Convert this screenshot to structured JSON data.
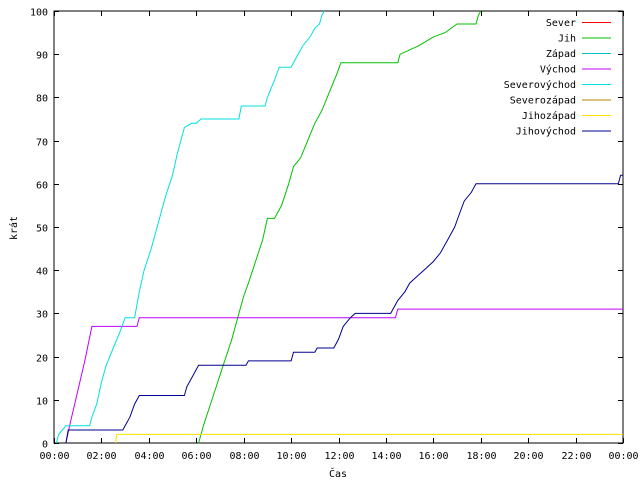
{
  "chart_data": {
    "type": "line",
    "xlabel": "Čas",
    "ylabel": "krát",
    "xlim": [
      0,
      24
    ],
    "ylim": [
      0,
      100
    ],
    "x_ticks": [
      {
        "value": 0,
        "label": "00:00"
      },
      {
        "value": 2,
        "label": "02:00"
      },
      {
        "value": 4,
        "label": "04:00"
      },
      {
        "value": 6,
        "label": "06:00"
      },
      {
        "value": 8,
        "label": "08:00"
      },
      {
        "value": 10,
        "label": "10:00"
      },
      {
        "value": 12,
        "label": "12:00"
      },
      {
        "value": 14,
        "label": "14:00"
      },
      {
        "value": 16,
        "label": "16:00"
      },
      {
        "value": 18,
        "label": "18:00"
      },
      {
        "value": 20,
        "label": "20:00"
      },
      {
        "value": 22,
        "label": "22:00"
      },
      {
        "value": 24,
        "label": "00:00"
      }
    ],
    "y_ticks": [
      0,
      10,
      20,
      30,
      40,
      50,
      60,
      70,
      80,
      90,
      100
    ],
    "grid": false,
    "legend_position": "top-right",
    "series": [
      {
        "name": "Sever",
        "color": "#ff0000",
        "points": []
      },
      {
        "name": "Jih",
        "color": "#00c000",
        "points": [
          [
            6.1,
            0
          ],
          [
            6.3,
            4
          ],
          [
            6.6,
            9
          ],
          [
            6.9,
            14
          ],
          [
            7.2,
            19
          ],
          [
            7.5,
            24
          ],
          [
            7.8,
            30
          ],
          [
            8.0,
            34
          ],
          [
            8.2,
            37
          ],
          [
            8.5,
            42
          ],
          [
            8.8,
            47
          ],
          [
            9.0,
            52
          ],
          [
            9.3,
            52
          ],
          [
            9.6,
            55
          ],
          [
            9.9,
            60
          ],
          [
            10.1,
            64
          ],
          [
            10.4,
            66
          ],
          [
            10.7,
            70
          ],
          [
            11.0,
            74
          ],
          [
            11.3,
            77
          ],
          [
            11.6,
            81
          ],
          [
            11.9,
            85
          ],
          [
            12.1,
            88
          ],
          [
            14.5,
            88
          ],
          [
            14.6,
            90
          ],
          [
            15.0,
            91
          ],
          [
            15.4,
            92
          ],
          [
            16.0,
            94
          ],
          [
            16.5,
            95
          ],
          [
            17.0,
            97
          ],
          [
            17.8,
            97
          ],
          [
            17.9,
            99
          ],
          [
            18.0,
            100
          ]
        ]
      },
      {
        "name": "Západ",
        "color": "#00c0c0",
        "points": []
      },
      {
        "name": "Východ",
        "color": "#c000ff",
        "points": [
          [
            0.5,
            0
          ],
          [
            0.7,
            5
          ],
          [
            1.0,
            12
          ],
          [
            1.3,
            19
          ],
          [
            1.6,
            27
          ],
          [
            3.5,
            27
          ],
          [
            3.6,
            29
          ],
          [
            14.4,
            29
          ],
          [
            14.5,
            31
          ],
          [
            24,
            31
          ]
        ]
      },
      {
        "name": "Severovýchod",
        "color": "#00e0e0",
        "points": [
          [
            0.1,
            0
          ],
          [
            0.2,
            2
          ],
          [
            0.35,
            3
          ],
          [
            0.5,
            4
          ],
          [
            1.5,
            4
          ],
          [
            1.6,
            6
          ],
          [
            1.8,
            9
          ],
          [
            2.0,
            14
          ],
          [
            2.2,
            18
          ],
          [
            2.5,
            22
          ],
          [
            2.8,
            26
          ],
          [
            3.0,
            29
          ],
          [
            3.4,
            29
          ],
          [
            3.6,
            35
          ],
          [
            3.8,
            40
          ],
          [
            4.1,
            45
          ],
          [
            4.4,
            51
          ],
          [
            4.7,
            57
          ],
          [
            5.0,
            62
          ],
          [
            5.2,
            67
          ],
          [
            5.5,
            73
          ],
          [
            5.8,
            74
          ],
          [
            6.0,
            74
          ],
          [
            6.2,
            75
          ],
          [
            7.8,
            75
          ],
          [
            7.9,
            78
          ],
          [
            8.9,
            78
          ],
          [
            9.0,
            80
          ],
          [
            9.3,
            84
          ],
          [
            9.5,
            87
          ],
          [
            10.0,
            87
          ],
          [
            10.2,
            89
          ],
          [
            10.5,
            92
          ],
          [
            10.8,
            94
          ],
          [
            11.0,
            96
          ],
          [
            11.2,
            97
          ],
          [
            11.3,
            99
          ],
          [
            11.4,
            100
          ]
        ]
      },
      {
        "name": "Severozápad",
        "color": "#c08000",
        "points": []
      },
      {
        "name": "Jihozápad",
        "color": "#ffe000",
        "points": [
          [
            2.6,
            0
          ],
          [
            2.65,
            2
          ],
          [
            24,
            2
          ]
        ]
      },
      {
        "name": "Jihovýchod",
        "color": "#000090",
        "points": [
          [
            0.5,
            0
          ],
          [
            0.6,
            3
          ],
          [
            2.9,
            3
          ],
          [
            3.2,
            6
          ],
          [
            3.4,
            9
          ],
          [
            3.6,
            11
          ],
          [
            5.5,
            11
          ],
          [
            5.6,
            13
          ],
          [
            5.9,
            16
          ],
          [
            6.1,
            18
          ],
          [
            8.1,
            18
          ],
          [
            8.2,
            19
          ],
          [
            10.0,
            19
          ],
          [
            10.1,
            21
          ],
          [
            11.0,
            21
          ],
          [
            11.1,
            22
          ],
          [
            11.8,
            22
          ],
          [
            12.0,
            24
          ],
          [
            12.2,
            27
          ],
          [
            12.5,
            29
          ],
          [
            12.7,
            30
          ],
          [
            14.2,
            30
          ],
          [
            14.5,
            33
          ],
          [
            14.8,
            35
          ],
          [
            15.0,
            37
          ],
          [
            15.2,
            38
          ],
          [
            15.6,
            40
          ],
          [
            16.0,
            42
          ],
          [
            16.3,
            44
          ],
          [
            16.6,
            47
          ],
          [
            16.9,
            50
          ],
          [
            17.1,
            53
          ],
          [
            17.3,
            56
          ],
          [
            17.6,
            58
          ],
          [
            17.8,
            60
          ],
          [
            23.8,
            60
          ],
          [
            23.9,
            62
          ],
          [
            24,
            62
          ]
        ]
      }
    ]
  }
}
